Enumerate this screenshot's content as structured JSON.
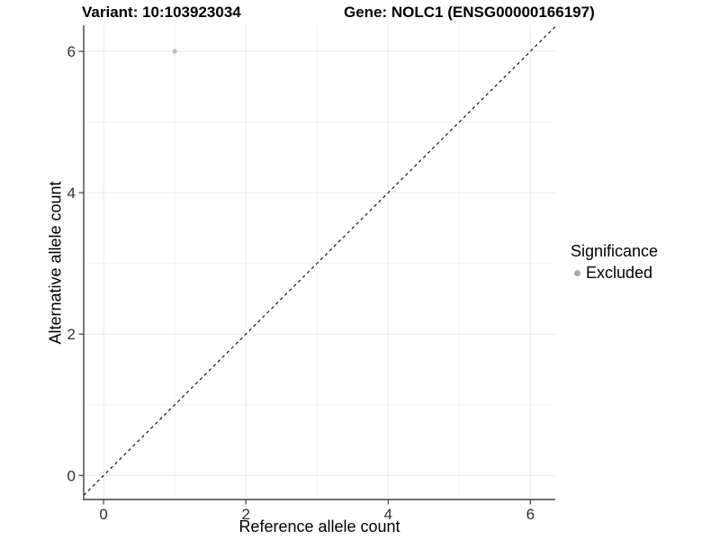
{
  "chart_data": {
    "type": "scatter",
    "title_left": "Variant: 10:103923034",
    "title_right": "Gene: NOLC1 (ENSG00000166197)",
    "xlabel": "Reference allele count",
    "ylabel": "Alternative allele count",
    "xlim": [
      -0.28,
      6.35
    ],
    "ylim": [
      -0.34,
      6.37
    ],
    "x_ticks": [
      0,
      2,
      4,
      6
    ],
    "y_ticks": [
      0,
      2,
      4,
      6
    ],
    "x_minor_ticks": [
      1,
      3,
      5
    ],
    "y_minor_ticks": [
      1,
      3,
      5
    ],
    "grid": true,
    "points": [
      {
        "x": 1,
        "y": 6,
        "series": "Excluded"
      }
    ],
    "identity_line": {
      "type": "y=x",
      "style": "dashed",
      "color": "#000000"
    },
    "legend": {
      "title": "Significance",
      "position": "right",
      "entries": [
        {
          "label": "Excluded",
          "color": "#aaaaaa"
        }
      ]
    },
    "colors": {
      "point": "#c2c2c2",
      "grid_major": "#e9e9e9",
      "grid_minor": "#f4f4f4",
      "axis_line": "#404040",
      "tick_text": "#303030"
    }
  }
}
